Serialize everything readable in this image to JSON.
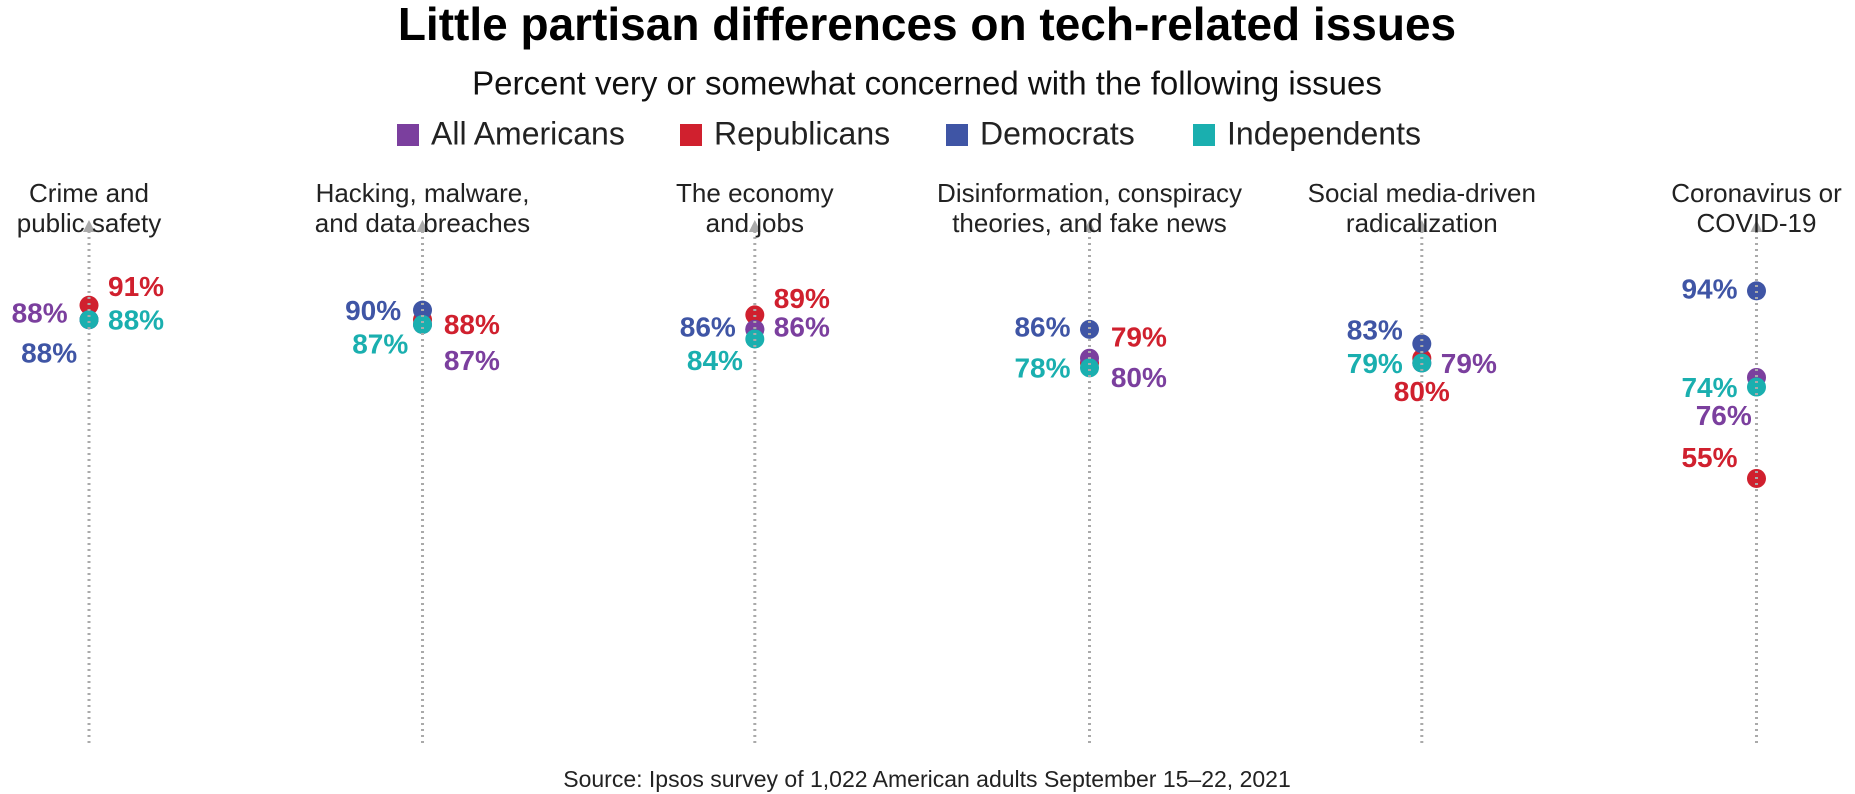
{
  "chart_data": {
    "type": "dot",
    "title": "Little partisan differences on tech-related issues",
    "subtitle": "Percent very or somewhat concerned with the following issues",
    "source": "Source: Ipsos survey of 1,022 American adults September 15–22, 2021",
    "categories": [
      "Crime and\npublic safety",
      "Hacking, malware,\nand data breaches",
      "The economy\nand jobs",
      "Disinformation, conspiracy\ntheories, and fake news",
      "Social media-driven\nradicalization",
      "Coronavirus or\nCOVID-19"
    ],
    "ylim": [
      0,
      100
    ],
    "legend": "top",
    "series": [
      {
        "name": "All Americans",
        "color": "#7b3f9e",
        "values": [
          88,
          87,
          86,
          80,
          79,
          76
        ],
        "value_labels": [
          "88%",
          "87%",
          "86%",
          "80%",
          "79%",
          "76%"
        ]
      },
      {
        "name": "Republicans",
        "color": "#d0202e",
        "values": [
          91,
          88,
          89,
          79,
          80,
          55
        ],
        "value_labels": [
          "91%",
          "88%",
          "89%",
          "79%",
          "80%",
          "55%"
        ]
      },
      {
        "name": "Democrats",
        "color": "#3f55a5",
        "values": [
          88,
          90,
          86,
          86,
          83,
          94
        ],
        "value_labels": [
          "88%",
          "90%",
          "86%",
          "86%",
          "83%",
          "94%"
        ]
      },
      {
        "name": "Independents",
        "color": "#1aafaf",
        "values": [
          88,
          87,
          84,
          78,
          79,
          74
        ],
        "value_labels": [
          "88%",
          "87%",
          "84%",
          "78%",
          "79%",
          "74%"
        ]
      }
    ]
  }
}
